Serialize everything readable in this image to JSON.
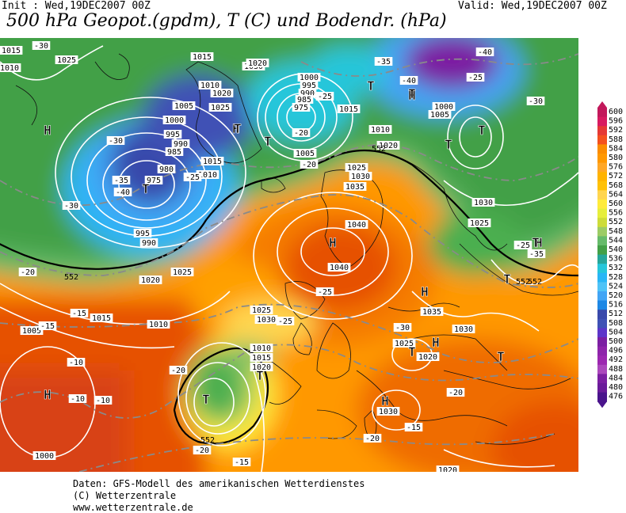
{
  "header": {
    "init": "Init : Wed,19DEC2007 00Z",
    "valid": "Valid: Wed,19DEC2007 00Z",
    "title": "500 hPa Geopot.(gpdm), T (C) und Bodendr. (hPa)"
  },
  "footer": {
    "line1": "Daten: GFS-Modell des amerikanischen Wetterdienstes",
    "line2": "(C) Wetterzentrale",
    "line3": "www.wetterzentrale.de"
  },
  "legend": {
    "levels": [
      "600",
      "596",
      "592",
      "588",
      "584",
      "580",
      "576",
      "572",
      "568",
      "564",
      "560",
      "556",
      "552",
      "548",
      "544",
      "540",
      "536",
      "532",
      "528",
      "524",
      "520",
      "516",
      "512",
      "508",
      "504",
      "500",
      "496",
      "492",
      "488",
      "484",
      "480",
      "476"
    ],
    "colors": [
      "#c2185b",
      "#d81b60",
      "#e53935",
      "#f4511e",
      "#fb8c00",
      "#ff9800",
      "#ffa726",
      "#ffb300",
      "#ffc107",
      "#ffd54f",
      "#ffeb3b",
      "#e6ee3c",
      "#cddc39",
      "#9ccc65",
      "#66bb6a",
      "#43a047",
      "#26a69a",
      "#26c6da",
      "#29b6f6",
      "#4fc3f7",
      "#42a5f5",
      "#1e88e5",
      "#3949ab",
      "#3f51b5",
      "#5c35c9",
      "#7b1fa2",
      "#8e24aa",
      "#9c27b0",
      "#ab47bc",
      "#7b1fa2",
      "#6a1b9a",
      "#4a148c"
    ]
  },
  "map": {
    "highs": [
      {
        "label": "H"
      },
      {
        "label": "H"
      },
      {
        "label": "H"
      },
      {
        "label": "H"
      },
      {
        "label": "H"
      },
      {
        "label": "H"
      },
      {
        "label": "H"
      },
      {
        "label": "H"
      },
      {
        "label": "H"
      }
    ],
    "lows": [
      {
        "label": "T"
      },
      {
        "label": "T"
      },
      {
        "label": "T"
      },
      {
        "label": "T"
      },
      {
        "label": "T"
      },
      {
        "label": "T"
      },
      {
        "label": "T"
      },
      {
        "label": "T"
      },
      {
        "label": "T"
      },
      {
        "label": "T"
      },
      {
        "label": "T"
      },
      {
        "label": "T"
      },
      {
        "label": "T"
      }
    ],
    "pressure_labels": [
      "1015",
      "1025",
      "1010",
      "1020",
      "1015",
      "1010",
      "1005",
      "1000",
      "995",
      "990",
      "985",
      "980",
      "975",
      "1030",
      "1025",
      "1020",
      "1015",
      "1010",
      "1005",
      "1000",
      "995",
      "990",
      "985",
      "975",
      "1035",
      "1040",
      "1040",
      "1030",
      "1025",
      "1020",
      "1015",
      "1010",
      "1005",
      "1000",
      "1030",
      "1025",
      "1020",
      "1015",
      "1010",
      "1005",
      "1000",
      "995",
      "990",
      "1010",
      "1015",
      "1020",
      "1025",
      "1030",
      "1035",
      "1030",
      "1025",
      "1020",
      "1030",
      "1020",
      "1025"
    ],
    "temp_labels": [
      "-30",
      "-35",
      "-40",
      "-25",
      "-20",
      "-15",
      "-10",
      "-30",
      "-35",
      "-40",
      "-30",
      "-25",
      "-20",
      "-25",
      "-30",
      "-20",
      "-15",
      "-10",
      "-20",
      "-25",
      "-30",
      "-35",
      "-40",
      "-20",
      "-15",
      "-25",
      "-20",
      "-15",
      "-10",
      "-20",
      "-25"
    ],
    "geopot_labels": [
      "552",
      "552",
      "552",
      "552",
      "552"
    ]
  }
}
